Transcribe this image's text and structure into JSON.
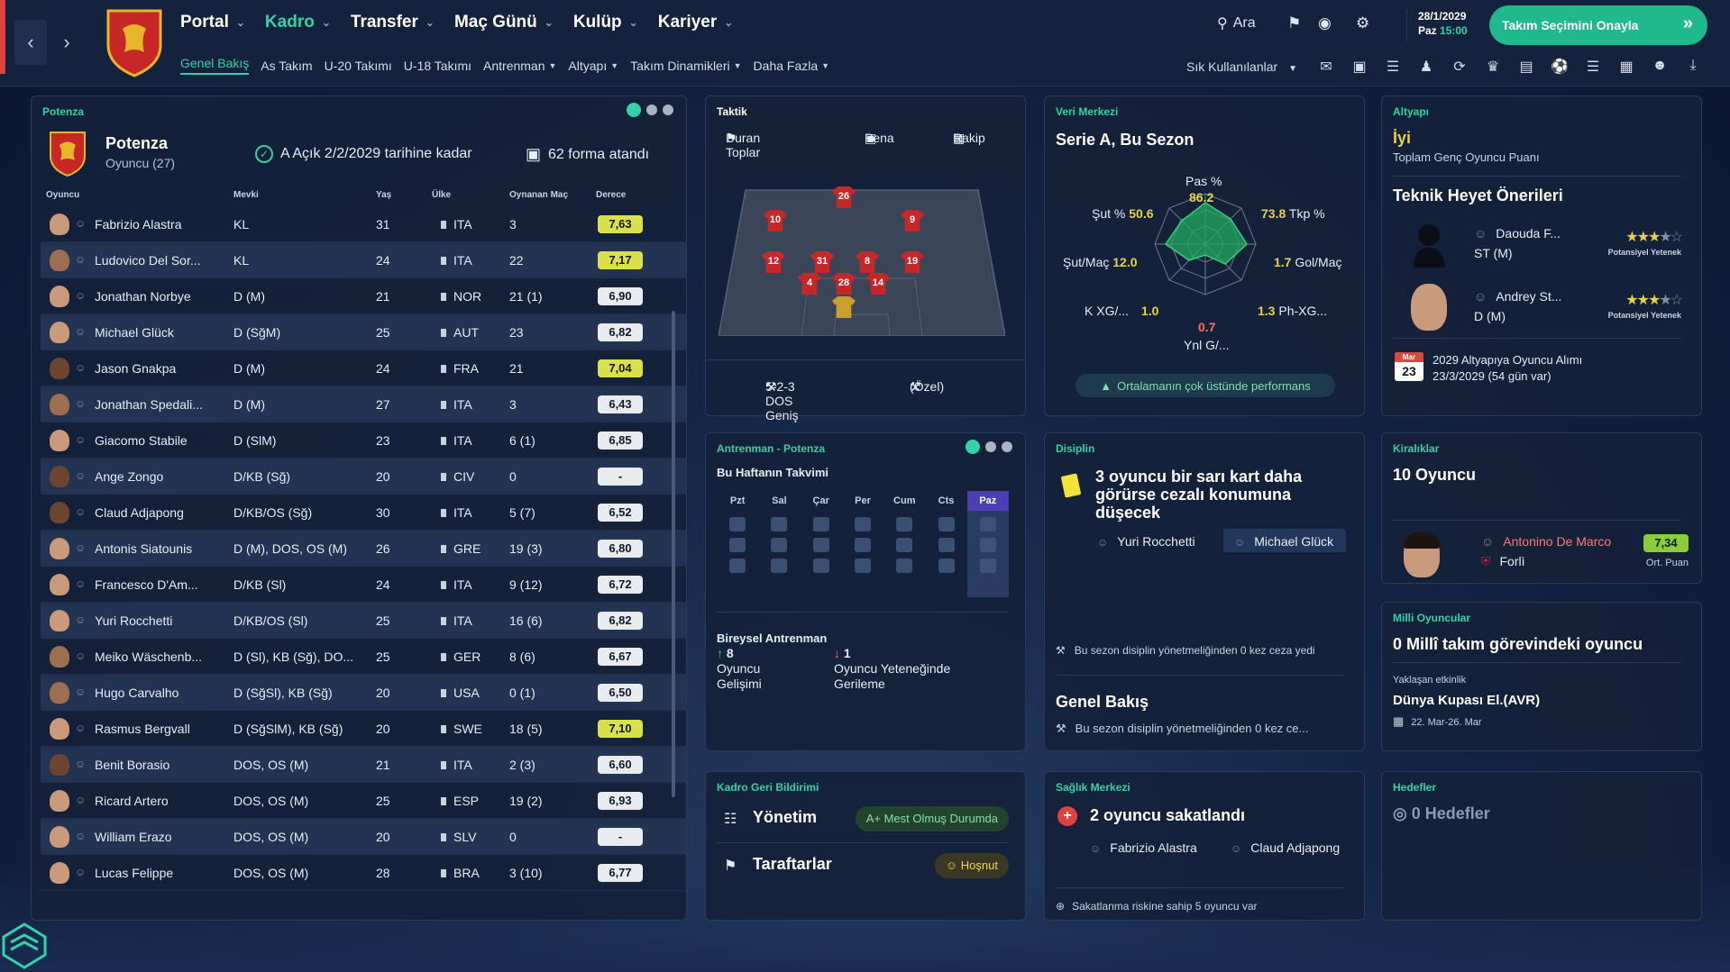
{
  "nav": {
    "main": [
      {
        "label": "Portal",
        "active": false
      },
      {
        "label": "Kadro",
        "active": true
      },
      {
        "label": "Transfer",
        "active": false
      },
      {
        "label": "Maç Günü",
        "active": false
      },
      {
        "label": "Kulüp",
        "active": false
      },
      {
        "label": "Kariyer",
        "active": false
      }
    ],
    "sub": [
      {
        "label": "Genel Bakış",
        "active": true,
        "dropdown": false
      },
      {
        "label": "As Takım",
        "active": false,
        "dropdown": false
      },
      {
        "label": "U-20 Takımı",
        "active": false,
        "dropdown": false
      },
      {
        "label": "U-18 Takımı",
        "active": false,
        "dropdown": false
      },
      {
        "label": "Antrenman",
        "active": false,
        "dropdown": true
      },
      {
        "label": "Altyapı",
        "active": false,
        "dropdown": true
      },
      {
        "label": "Takım Dinamikleri",
        "active": false,
        "dropdown": true
      },
      {
        "label": "Daha Fazla",
        "active": false,
        "dropdown": true
      }
    ],
    "search_label": "Ara",
    "date": "28/1/2029",
    "day": "Paz",
    "time": "15:00",
    "confirm_label": "Takım Seçimini Onayla",
    "quick_label": "Sık Kullanılanlar"
  },
  "squad": {
    "title": "Potenza",
    "club_name": "Potenza",
    "players_label": "Oyuncu (27)",
    "open_text": "A Açık 2/2/2029 tarihine kadar",
    "shirts_text": "62 forma atandı",
    "columns": {
      "player": "Oyuncu",
      "position": "Mevki",
      "age": "Yaş",
      "nation": "Ülke",
      "apps": "Oynanan Maç",
      "rating": "Derece"
    },
    "rows": [
      {
        "name": "Fabrizio Alastra",
        "pos": "KL",
        "age": "31",
        "nat": "ITA",
        "apps": "3",
        "rating": "7,63",
        "rc": "y",
        "skin": "l"
      },
      {
        "name": "Ludovico Del Sor...",
        "pos": "KL",
        "age": "24",
        "nat": "ITA",
        "apps": "22",
        "rating": "7,17",
        "rc": "y",
        "skin": "m"
      },
      {
        "name": "Jonathan Norbye",
        "pos": "D (M)",
        "age": "21",
        "nat": "NOR",
        "apps": "21 (1)",
        "rating": "6,90",
        "rc": "b",
        "skin": "l"
      },
      {
        "name": "Michael Glück",
        "pos": "D (SğM)",
        "age": "25",
        "nat": "AUT",
        "apps": "23",
        "rating": "6,82",
        "rc": "b",
        "skin": "l"
      },
      {
        "name": "Jason Gnakpa",
        "pos": "D (M)",
        "age": "24",
        "nat": "FRA",
        "apps": "21",
        "rating": "7,04",
        "rc": "y",
        "skin": "d"
      },
      {
        "name": "Jonathan Spedali...",
        "pos": "D (M)",
        "age": "27",
        "nat": "ITA",
        "apps": "3",
        "rating": "6,43",
        "rc": "b",
        "skin": "m"
      },
      {
        "name": "Giacomo Stabile",
        "pos": "D (SlM)",
        "age": "23",
        "nat": "ITA",
        "apps": "6 (1)",
        "rating": "6,85",
        "rc": "b",
        "skin": "l"
      },
      {
        "name": "Ange Zongo",
        "pos": "D/KB (Sğ)",
        "age": "20",
        "nat": "CIV",
        "apps": "0",
        "rating": "-",
        "rc": "b",
        "skin": "d"
      },
      {
        "name": "Claud Adjapong",
        "pos": "D/KB/OS (Sğ)",
        "age": "30",
        "nat": "ITA",
        "apps": "5 (7)",
        "rating": "6,52",
        "rc": "b",
        "skin": "d"
      },
      {
        "name": "Antonis Siatounis",
        "pos": "D (M), DOS, OS (M)",
        "age": "26",
        "nat": "GRE",
        "apps": "19 (3)",
        "rating": "6,80",
        "rc": "b",
        "skin": "l"
      },
      {
        "name": "Francesco D'Am...",
        "pos": "D/KB (Sl)",
        "age": "24",
        "nat": "ITA",
        "apps": "9 (12)",
        "rating": "6,72",
        "rc": "b",
        "skin": "l"
      },
      {
        "name": "Yuri Rocchetti",
        "pos": "D/KB/OS (Sl)",
        "age": "25",
        "nat": "ITA",
        "apps": "16 (6)",
        "rating": "6,82",
        "rc": "b",
        "skin": "l"
      },
      {
        "name": "Meiko Wäschenb...",
        "pos": "D (Sl), KB (Sğ), DO...",
        "age": "25",
        "nat": "GER",
        "apps": "8 (6)",
        "rating": "6,67",
        "rc": "b",
        "skin": "m"
      },
      {
        "name": "Hugo Carvalho",
        "pos": "D (SğSl), KB (Sğ)",
        "age": "20",
        "nat": "USA",
        "apps": "0 (1)",
        "rating": "6,50",
        "rc": "b",
        "skin": "m"
      },
      {
        "name": "Rasmus Bergvall",
        "pos": "D (SğSlM), KB (Sğ)",
        "age": "20",
        "nat": "SWE",
        "apps": "18 (5)",
        "rating": "7,10",
        "rc": "y",
        "skin": "l"
      },
      {
        "name": "Benit Borasio",
        "pos": "DOS, OS (M)",
        "age": "21",
        "nat": "ITA",
        "apps": "2 (3)",
        "rating": "6,60",
        "rc": "b",
        "skin": "d"
      },
      {
        "name": "Ricard Artero",
        "pos": "DOS, OS (M)",
        "age": "25",
        "nat": "ESP",
        "apps": "19 (2)",
        "rating": "6,93",
        "rc": "b",
        "skin": "l"
      },
      {
        "name": "William Erazo",
        "pos": "DOS, OS (M)",
        "age": "20",
        "nat": "SLV",
        "apps": "0",
        "rating": "-",
        "rc": "b",
        "skin": "l"
      },
      {
        "name": "Lucas Felippe",
        "pos": "DOS, OS (M)",
        "age": "28",
        "nat": "BRA",
        "apps": "3 (10)",
        "rating": "6,77",
        "rc": "b",
        "skin": "l"
      }
    ]
  },
  "tactic": {
    "title": "Taktik",
    "set_pieces": "Duran Toplar",
    "penalty": "Pena",
    "opponent": "Rakip",
    "formation": "5-2-3 DOS Geniş",
    "custom": "(Özel)",
    "players": [
      {
        "num": "26",
        "gk": false
      },
      {
        "num": "10",
        "gk": false
      },
      {
        "num": "9",
        "gk": false
      },
      {
        "num": "12",
        "gk": false
      },
      {
        "num": "31",
        "gk": false
      },
      {
        "num": "8",
        "gk": false
      },
      {
        "num": "19",
        "gk": false
      },
      {
        "num": "4",
        "gk": false
      },
      {
        "num": "28",
        "gk": false
      },
      {
        "num": "14",
        "gk": false
      },
      {
        "num": "",
        "gk": true
      }
    ]
  },
  "data_center": {
    "title": "Veri Merkezi",
    "heading": "Serie A, Bu Sezon",
    "pass_label": "Pas %",
    "pass_val": "86.2",
    "shot_pct_label": "Şut %",
    "shot_pct_val": "50.6",
    "tkp_label": "Tkp %",
    "tkp_val": "73.8",
    "shots_label": "Şut/Maç",
    "shots_val": "12.0",
    "goals_label": "Gol/Maç",
    "goals_val": "1.7",
    "kxg_label": "K XG/...",
    "kxg_val": "1.0",
    "phxg_label": "Ph-XG...",
    "phxg_val": "1.3",
    "ynl_label": "Ynl G/...",
    "ynl_val": "0.7",
    "badge": "Ortalamanın çok üstünde performans"
  },
  "youth": {
    "title": "Altyapı",
    "rating": "İyi",
    "rating_sub": "Toplam Genç Oyuncu Puanı",
    "staff_heading": "Teknik Heyet Önerileri",
    "recs": [
      {
        "name": "Daouda F...",
        "pos": "ST (M)",
        "tag": "Potansiyel Yetenek"
      },
      {
        "name": "Andrey St...",
        "pos": "D (M)",
        "tag": "Potansiyel Yetenek"
      }
    ],
    "cal_month": "Mar",
    "cal_day": "23",
    "intake_line1": "2029 Altyapıya Oyuncu Alımı",
    "intake_line2": "23/3/2029 (54 gün var)"
  },
  "training": {
    "title": "Antrenman - Potenza",
    "week": "Bu Haftanın Takvimi",
    "days": [
      "Pzt",
      "Sal",
      "Çar",
      "Per",
      "Cum",
      "Cts",
      "Paz"
    ],
    "individual": "Bireysel Antrenman",
    "up_count": "8",
    "up_line1": "Oyuncu",
    "up_line2": "Gelişimi",
    "down_count": "1",
    "down_line1": "Oyuncu Yeteneğinde",
    "down_line2": "Gerileme"
  },
  "discipline": {
    "title": "Disiplin",
    "text": "3 oyuncu bir sarı kart daha görürse cezalı konumuna düşecek",
    "p1": "Yuri Rocchetti",
    "p2": "Michael Glück",
    "note": "Bu sezon disiplin yönetmeliğinden 0 kez ceza yedi",
    "overview": "Genel Bakış",
    "overview_note": "Bu sezon disiplin yönetmeliğinden 0 kez ce..."
  },
  "loans": {
    "title": "Kiralıklar",
    "heading": "10 Oyuncu",
    "player": "Antonino De Marco",
    "club": "Forlì",
    "rating": "7,34",
    "rating_label": "Ort. Puan"
  },
  "national": {
    "title": "Milli Oyuncular",
    "heading": "0 Millî takım görevindeki oyuncu",
    "upcoming": "Yaklaşan etkinlik",
    "event": "Dünya Kupası El.(AVR)",
    "dates": "22. Mar-26. Mar"
  },
  "feedback": {
    "title": "Kadro Geri Bildirimi",
    "board": "Yönetim",
    "board_badge": "A+ Mest Olmuş Durumda",
    "fans": "Taraftarlar",
    "fans_badge": "Hoşnut"
  },
  "medical": {
    "title": "Sağlık Merkezi",
    "heading": "2 oyuncu sakatlandı",
    "p1": "Fabrizio Alastra",
    "p2": "Claud Adjapong",
    "note": "Sakatlanma riskine sahip 5 oyuncu var"
  },
  "goals": {
    "title": "Hedefler",
    "heading": "0 Hedefler"
  },
  "colors": {
    "accent": "#35d1a8",
    "confirm": "#1fb98c",
    "kit": "#c62828",
    "good": "#e7d24a"
  }
}
